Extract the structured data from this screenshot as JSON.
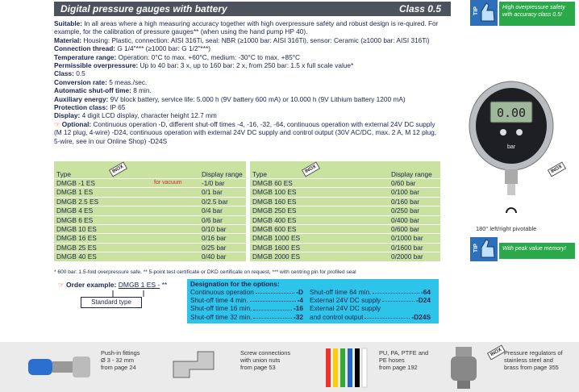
{
  "header": {
    "title": "Digital pressure gauges with battery",
    "class": "Class 0.5"
  },
  "tips": [
    {
      "label": "TIP",
      "text": "High overpressure safety with accuracy class 0.5!"
    },
    {
      "label": "TIP",
      "text": "With peak value memory!"
    }
  ],
  "specs": [
    {
      "label": "Suitable:",
      "text": "In all areas where a high measuring accuracy together with high overpressure safety and robust design is re-quired. For example, for the calibration of pressure gauges** (when using the hand pump HP 40)."
    },
    {
      "label": "Material:",
      "text": "Housing: Plastic, connection: AISI 316Ti, seal: NBR (≥1000 bar: AISI 316Ti), sensor: Ceramic (≥1000 bar: AISI 316Ti)"
    },
    {
      "label": "Connection thread:",
      "text": "G 1/4\"*** (≥1000 bar: G 1/2\"***)"
    },
    {
      "label": "Temperature range:",
      "text": "Operation: 0°C to max. +60°C, medium: -30°C to max. +85°C"
    },
    {
      "label": "Permissible overpressure:",
      "text": "Up to 40 bar: 3 x, up to 160 bar: 2 x, from 250 bar: 1.5 x full scale value*"
    },
    {
      "label": "Class:",
      "text": "0.5"
    },
    {
      "label": "Conversion rate:",
      "text": "5 meas./sec."
    },
    {
      "label": "Automatic shut-off time:",
      "text": "8 min."
    },
    {
      "label": "Auxiliary energy:",
      "text": "9V block battery, service life: 5.000 h (9V battery 600 mA) or 10.000 h (9V Lithium battery 1200 mA)"
    },
    {
      "label": "Protection class:",
      "text": "IP 65"
    },
    {
      "label": "Display:",
      "text": "4 digit LCD display, character height 12.7 mm"
    },
    {
      "label": "Optional:",
      "text": "Continuous operation -D, different shut-off times -4, -16, -32, -64, continuous operation with external 24V DC supply (M 12 plug, 4-wire) -D24, continuous operation with external 24V DC supply and control output (30V AC/DC, max. 2 A, M 12 plug, 5-wire, see in our Online Shop) -D24S"
    }
  ],
  "table": {
    "headers": [
      "Type",
      "Display range"
    ],
    "badge": "INOX",
    "note": "for vacuum",
    "left": [
      [
        "DMGB -1 ES",
        "-1/0 bar"
      ],
      [
        "DMGB 1 ES",
        "0/1 bar"
      ],
      [
        "DMGB 2.5 ES",
        "0/2.5 bar"
      ],
      [
        "DMGB 4 ES",
        "0/4 bar"
      ],
      [
        "DMGB 6 ES",
        "0/6 bar"
      ],
      [
        "DMGB 10 ES",
        "0/10 bar"
      ],
      [
        "DMGB 16 ES",
        "0/16 bar"
      ],
      [
        "DMGB 25 ES",
        "0/25 bar"
      ],
      [
        "DMGB 40 ES",
        "0/40 bar"
      ]
    ],
    "right": [
      [
        "DMGB 60 ES",
        "0/60 bar"
      ],
      [
        "DMGB 100 ES",
        "0/100 bar"
      ],
      [
        "DMGB 160 ES",
        "0/160 bar"
      ],
      [
        "DMGB 250 ES",
        "0/250 bar"
      ],
      [
        "DMGB 400 ES",
        "0/400 bar"
      ],
      [
        "DMGB 600 ES",
        "0/600 bar"
      ],
      [
        "DMGB 1000 ES",
        "0/1000 bar"
      ],
      [
        "DMGB 1600 ES",
        "0/1600 bar"
      ],
      [
        "DMGB 2000 ES",
        "0/2000 bar"
      ]
    ]
  },
  "footnote": "* 600 bar: 1.5-fold overpressure safe, ** 5-point test certificate or DKD certificate on request, *** with centring pin for profiled seal",
  "order": {
    "label": "Order example:",
    "code": "DMGB 1 ES -",
    "suffix": "**",
    "standard": "Standard type"
  },
  "designation": {
    "title": "Designation for the options:",
    "items": [
      {
        "text": "Continuous operation",
        "code": "-D"
      },
      {
        "text": "Shut-off time 4 min.",
        "code": "-4"
      },
      {
        "text": "Shut-off time 16 min.",
        "code": "-16"
      },
      {
        "text": "Shut-off time 32 min.",
        "code": "-32"
      },
      {
        "text": "Shut-off time 64 min.",
        "code": "-64"
      },
      {
        "text": "External 24V DC supply",
        "code": "-D24"
      },
      {
        "text": "External 24V DC supply",
        "code": ""
      },
      {
        "text": "and control output",
        "code": "-D24S"
      }
    ]
  },
  "gauge": {
    "display": "0.00",
    "unit": "bar",
    "badge": "INOX",
    "caption": "180° left/right pivotable"
  },
  "products": [
    {
      "lines": [
        "Push-in fittings",
        "Ø 3 - 32 mm",
        "from page 24"
      ]
    },
    {
      "lines": [
        "Screw connections",
        "with union nuts",
        "from page 53"
      ]
    },
    {
      "lines": [
        "PU, PA, PTFE and",
        "PE hoses",
        "from page 192"
      ]
    },
    {
      "badge": "INOX",
      "lines": [
        "Pressure regulators of",
        "stainless steel and",
        "brass from page 355"
      ]
    }
  ]
}
